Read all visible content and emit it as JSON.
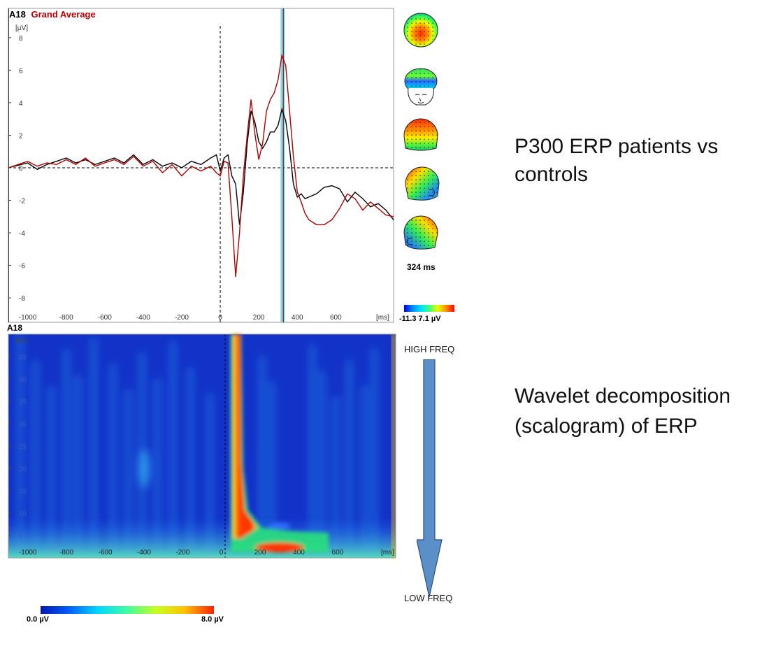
{
  "erp": {
    "channel": "A18",
    "title": "Grand Average",
    "y_unit": "[µV]",
    "x_unit": "[ms]",
    "cursor_label": "324 ms",
    "colorbar_min": "-11.3",
    "colorbar_max": "7.1 µV"
  },
  "scalogram": {
    "channel": "A18",
    "y_unit": "[Hz]",
    "x_unit": "[ms]",
    "colorbar_min": "0.0 µV",
    "colorbar_max": "8.0 µV"
  },
  "annotations": {
    "erp_text": "P300 ERP patients vs controls",
    "wavelet_text": "Wavelet decomposition (scalogram) of ERP",
    "high_freq": "HIGH FREQ",
    "low_freq": "LOW FREQ"
  },
  "colors": {
    "patients": "#b00000",
    "controls": "#000000",
    "cursor_band": "#5fd8e8",
    "title_red": "#c00000",
    "arrow_fill": "#5b8fc7"
  },
  "chart_data": [
    {
      "type": "line",
      "xlabel": "[ms]",
      "ylabel": "[µV]",
      "xlim": [
        -1100,
        900
      ],
      "ylim": [
        -9.5,
        9.8
      ],
      "xticks": [
        -1000,
        -800,
        -600,
        -400,
        -200,
        0,
        200,
        400,
        600
      ],
      "yticks": [
        8,
        6,
        4,
        2,
        0,
        -2,
        -4,
        -6,
        -8
      ],
      "cursor_ms": 324,
      "series": [
        {
          "color": "#000000",
          "x": [
            -1100,
            -1000,
            -950,
            -900,
            -850,
            -800,
            -750,
            -700,
            -650,
            -600,
            -550,
            -500,
            -450,
            -400,
            -350,
            -300,
            -250,
            -200,
            -150,
            -100,
            -50,
            -20,
            0,
            20,
            40,
            60,
            80,
            100,
            120,
            140,
            160,
            180,
            200,
            220,
            240,
            260,
            280,
            300,
            320,
            340,
            360,
            380,
            400,
            420,
            440,
            460,
            500,
            540,
            580,
            620,
            660,
            700,
            740,
            780,
            820,
            860,
            900
          ],
          "y": [
            0,
            0.3,
            -0.1,
            0.2,
            0.4,
            0.6,
            0.3,
            0.5,
            0.2,
            0.4,
            0.6,
            0.3,
            0.8,
            0.2,
            0.5,
            0.1,
            0.3,
            0.0,
            0.4,
            0.2,
            0.6,
            0.8,
            -0.2,
            0.6,
            0.8,
            -0.5,
            -1.0,
            -3.5,
            -1.5,
            1.5,
            3.5,
            2.8,
            1.6,
            1.2,
            1.6,
            2.2,
            2.2,
            2.6,
            3.6,
            2.9,
            1.2,
            -1.0,
            -1.8,
            -1.6,
            -1.9,
            -1.8,
            -1.6,
            -1.2,
            -1.1,
            -1.3,
            -2.1,
            -1.5,
            -1.9,
            -2.4,
            -2.2,
            -2.6,
            -3.2
          ]
        },
        {
          "color": "#b00000",
          "x": [
            -1100,
            -1000,
            -950,
            -900,
            -850,
            -800,
            -750,
            -700,
            -650,
            -600,
            -550,
            -500,
            -450,
            -400,
            -350,
            -300,
            -250,
            -200,
            -150,
            -100,
            -50,
            -20,
            0,
            20,
            40,
            60,
            80,
            100,
            120,
            140,
            160,
            180,
            200,
            220,
            240,
            260,
            280,
            300,
            320,
            340,
            360,
            380,
            400,
            420,
            440,
            460,
            500,
            540,
            580,
            620,
            660,
            700,
            740,
            780,
            820,
            860,
            900
          ],
          "y": [
            0,
            0.4,
            0.1,
            0.3,
            0.2,
            0.5,
            0.2,
            0.6,
            0.1,
            0.3,
            0.5,
            0.2,
            0.7,
            0.1,
            0.4,
            -0.3,
            0.2,
            -0.5,
            0.1,
            -0.2,
            0.1,
            -0.3,
            -0.5,
            0.4,
            0.3,
            -3.0,
            -6.7,
            -4.0,
            -0.5,
            2.0,
            4.2,
            2.1,
            0.5,
            1.5,
            3.5,
            4.2,
            4.6,
            5.4,
            6.9,
            6.3,
            3.5,
            0.7,
            -1.5,
            -2.1,
            -2.8,
            -3.2,
            -3.5,
            -3.5,
            -3.2,
            -2.5,
            -1.6,
            -1.9,
            -2.6,
            -2.1,
            -2.5,
            -2.9,
            -3.0
          ]
        }
      ]
    },
    {
      "type": "heatmap",
      "xlabel": "[ms]",
      "ylabel": "[Hz]",
      "xlim": [
        -1100,
        900
      ],
      "ylim": [
        0,
        50
      ],
      "xticks": [
        -1000,
        -800,
        -600,
        -400,
        -200,
        0,
        200,
        400,
        600
      ],
      "yticks": [
        45,
        40,
        35,
        30,
        25,
        20,
        15,
        10,
        5
      ],
      "zlim": [
        0.0,
        8.0
      ]
    }
  ]
}
